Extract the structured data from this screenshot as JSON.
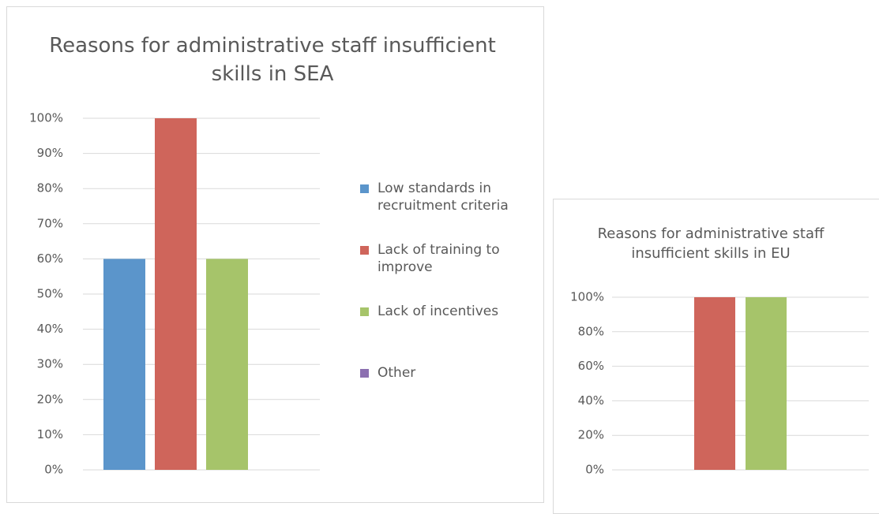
{
  "chart_data": [
    {
      "type": "bar",
      "title": "Reasons for administrative staff insufficient skills in SEA",
      "categories": [
        null
      ],
      "series": [
        {
          "name": "Low standards in recruitment criteria",
          "color": "#5b95cb",
          "values": [
            60
          ]
        },
        {
          "name": "Lack of training to improve",
          "color": "#cf655b",
          "values": [
            100
          ]
        },
        {
          "name": "Lack of incentives",
          "color": "#a6c46a",
          "values": [
            60
          ]
        },
        {
          "name": "Other",
          "color": "#8c6fb0",
          "values": [
            0
          ]
        }
      ],
      "ylim": [
        0,
        100
      ],
      "yticks": [
        {
          "value": 0,
          "label": "0%"
        },
        {
          "value": 10,
          "label": "10%"
        },
        {
          "value": 20,
          "label": "20%"
        },
        {
          "value": 30,
          "label": "30%"
        },
        {
          "value": 40,
          "label": "40%"
        },
        {
          "value": 50,
          "label": "50%"
        },
        {
          "value": 60,
          "label": "60%"
        },
        {
          "value": 70,
          "label": "70%"
        },
        {
          "value": 80,
          "label": "80%"
        },
        {
          "value": 90,
          "label": "90%"
        },
        {
          "value": 100,
          "label": "100%"
        }
      ],
      "grid": true,
      "legend": "right"
    },
    {
      "type": "bar",
      "title": "Reasons for administrative staff insufficient skills in EU",
      "categories": [
        null
      ],
      "series": [
        {
          "color": "#5b95cb",
          "values": [
            0
          ]
        },
        {
          "color": "#cf655b",
          "values": [
            100
          ]
        },
        {
          "color": "#a6c46a",
          "values": [
            100
          ]
        },
        {
          "color": "#8c6fb0",
          "values": [
            0
          ]
        }
      ],
      "ylim": [
        0,
        100
      ],
      "yticks": [
        {
          "value": 0,
          "label": "0%"
        },
        {
          "value": 20,
          "label": "20%"
        },
        {
          "value": 40,
          "label": "40%"
        },
        {
          "value": 60,
          "label": "60%"
        },
        {
          "value": 80,
          "label": "80%"
        },
        {
          "value": 100,
          "label": "100%"
        }
      ],
      "grid": true
    }
  ]
}
